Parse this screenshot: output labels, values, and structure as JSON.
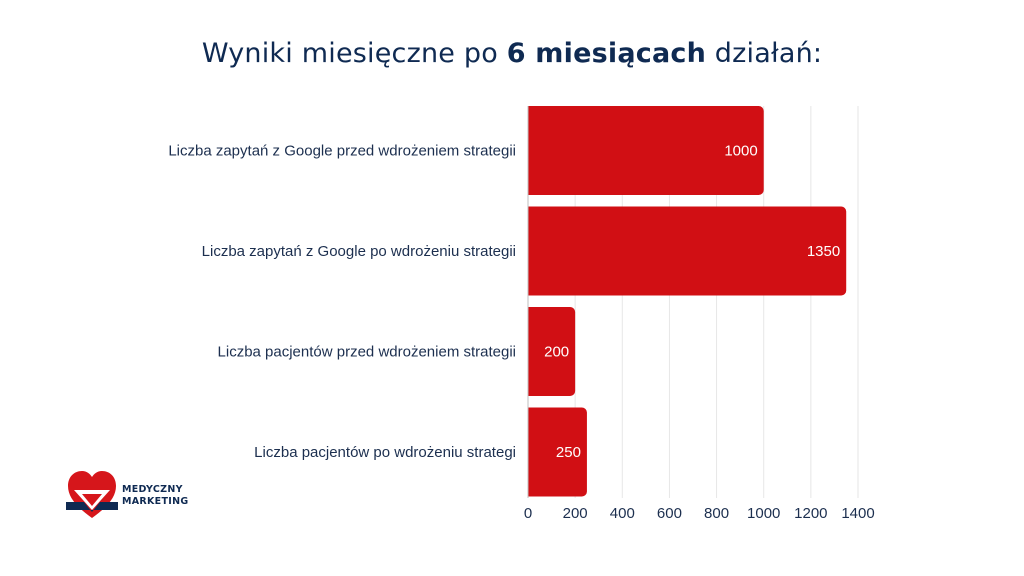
{
  "title": {
    "part1": "Wyniki miesięczne po ",
    "bold": "6 miesiącach",
    "part2": " działań:"
  },
  "logo": {
    "line1": "MEDYCZNY",
    "line2": "MARKETING",
    "colors": {
      "red": "#d6161b",
      "navy": "#0f2a52"
    }
  },
  "chart_data": {
    "type": "bar",
    "orientation": "horizontal",
    "categories": [
      "Liczba zapytań z Google przed wdrożeniem strategii",
      "Liczba zapytań z Google po wdrożeniu strategii",
      "Liczba pacjentów przed wdrożeniem strategii",
      "Liczba pacjentów po wdrożeniu strategi"
    ],
    "values": [
      1000,
      1350,
      200,
      250
    ],
    "xlim": [
      0,
      1400
    ],
    "xticks": [
      0,
      200,
      400,
      600,
      800,
      1000,
      1200,
      1400
    ],
    "grid": true,
    "bar_color": "#d10f14",
    "grid_color": "#e6e6e6",
    "title": "",
    "xlabel": "",
    "ylabel": ""
  }
}
